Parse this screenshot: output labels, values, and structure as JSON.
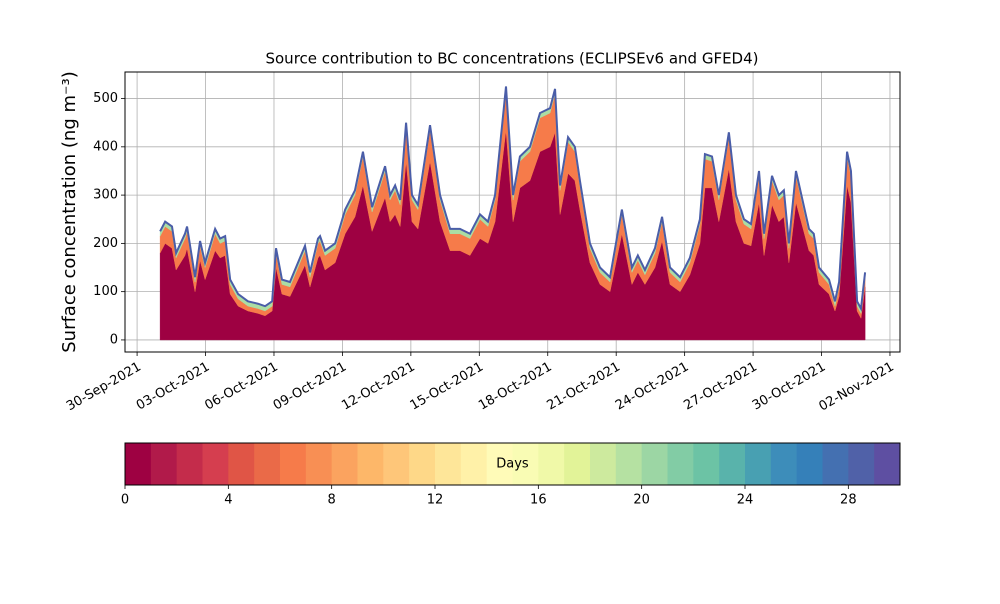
{
  "chart_data": {
    "type": "stacked_area",
    "title": "Source contribution to BC concentrations (ECLIPSEv6 and GFED4)",
    "y_label": "Surface concentration (ng m⁻³)",
    "x": [
      1.01,
      1.23,
      1.53,
      1.71,
      2.1,
      2.19,
      2.54,
      2.76,
      2.98,
      3.42,
      3.64,
      3.86,
      4.08,
      4.43,
      4.86,
      5.3,
      5.61,
      5.92,
      6.09,
      6.35,
      6.7,
      7.36,
      7.58,
      7.93,
      8.02,
      8.24,
      8.68,
      9.12,
      9.55,
      9.9,
      10.3,
      10.87,
      11.09,
      11.31,
      11.53,
      11.79,
      12.05,
      12.31,
      12.84,
      13.28,
      13.72,
      14.15,
      14.59,
      15.03,
      15.38,
      15.69,
      16.17,
      16.48,
      16.78,
      17.22,
      17.66,
      18.1,
      18.32,
      18.54,
      18.89,
      19.19,
      19.41,
      19.85,
      20.29,
      20.73,
      21.25,
      21.69,
      21.95,
      22.26,
      22.7,
      23.01,
      23.36,
      23.8,
      24.23,
      24.67,
      24.89,
      25.2,
      25.5,
      25.94,
      26.25,
      26.6,
      26.91,
      27.26,
      27.48,
      27.83,
      28.13,
      28.35,
      28.57,
      28.88,
      29.45,
      29.66,
      29.89,
      30.33,
      30.59,
      30.77,
      31.12,
      31.29,
      31.56,
      31.73,
      31.91
    ],
    "series": [
      {
        "color": "#9e0142",
        "values": [
          180,
          200,
          190,
          145,
          175,
          190,
          100,
          165,
          125,
          185,
          170,
          175,
          95,
          70,
          60,
          55,
          50,
          60,
          150,
          95,
          90,
          155,
          110,
          170,
          175,
          145,
          160,
          220,
          255,
          320,
          225,
          295,
          245,
          260,
          235,
          370,
          245,
          230,
          370,
          245,
          185,
          185,
          175,
          210,
          200,
          245,
          435,
          245,
          315,
          330,
          390,
          400,
          430,
          260,
          345,
          330,
          270,
          160,
          115,
          100,
          220,
          115,
          140,
          115,
          150,
          205,
          115,
          100,
          135,
          200,
          315,
          315,
          245,
          355,
          245,
          200,
          195,
          285,
          175,
          280,
          245,
          255,
          160,
          285,
          185,
          175,
          115,
          95,
          60,
          90,
          320,
          285,
          60,
          45,
          110
        ]
      },
      {
        "color": "#f67b4a",
        "values": [
          35,
          35,
          35,
          25,
          35,
          35,
          20,
          30,
          25,
          35,
          30,
          30,
          20,
          15,
          10,
          10,
          10,
          10,
          30,
          20,
          20,
          30,
          20,
          30,
          30,
          30,
          30,
          40,
          45,
          60,
          40,
          55,
          45,
          50,
          45,
          70,
          45,
          40,
          65,
          45,
          35,
          35,
          35,
          40,
          35,
          45,
          80,
          45,
          55,
          60,
          70,
          70,
          80,
          50,
          65,
          60,
          50,
          30,
          25,
          20,
          40,
          25,
          25,
          20,
          30,
          40,
          25,
          20,
          25,
          40,
          60,
          55,
          45,
          65,
          45,
          40,
          35,
          55,
          35,
          50,
          45,
          45,
          30,
          55,
          35,
          35,
          25,
          20,
          10,
          20,
          60,
          55,
          10,
          10,
          20
        ]
      },
      {
        "color": "#abdda4",
        "values": [
          10,
          10,
          10,
          10,
          10,
          10,
          10,
          10,
          10,
          10,
          10,
          10,
          10,
          10,
          10,
          10,
          10,
          10,
          10,
          10,
          10,
          10,
          10,
          10,
          10,
          10,
          10,
          10,
          10,
          10,
          10,
          10,
          10,
          10,
          10,
          10,
          10,
          10,
          10,
          10,
          10,
          10,
          10,
          10,
          10,
          10,
          10,
          10,
          10,
          10,
          10,
          10,
          10,
          10,
          10,
          10,
          10,
          10,
          10,
          10,
          10,
          10,
          10,
          10,
          10,
          10,
          10,
          10,
          10,
          10,
          10,
          10,
          10,
          10,
          10,
          10,
          10,
          10,
          10,
          10,
          10,
          10,
          10,
          10,
          10,
          10,
          10,
          10,
          10,
          10,
          10,
          10,
          10,
          10,
          10
        ]
      }
    ],
    "edge_color": "#4a5da8",
    "xlim": [
      -0.53,
      33.44
    ],
    "xticks": [
      {
        "value": 0,
        "label": "30-Sep-2021"
      },
      {
        "value": 3,
        "label": "03-Oct-2021"
      },
      {
        "value": 6,
        "label": "06-Oct-2021"
      },
      {
        "value": 9,
        "label": "09-Oct-2021"
      },
      {
        "value": 12,
        "label": "12-Oct-2021"
      },
      {
        "value": 15,
        "label": "15-Oct-2021"
      },
      {
        "value": 18,
        "label": "18-Oct-2021"
      },
      {
        "value": 21,
        "label": "21-Oct-2021"
      },
      {
        "value": 24,
        "label": "24-Oct-2021"
      },
      {
        "value": 27,
        "label": "27-Oct-2021"
      },
      {
        "value": 30,
        "label": "30-Oct-2021"
      },
      {
        "value": 33,
        "label": "02-Nov-2021"
      }
    ],
    "ylim": [
      -25,
      555
    ],
    "yticks": [
      0,
      100,
      200,
      300,
      400,
      500
    ],
    "grid": true,
    "colorbar": {
      "label": "Days",
      "lim": [
        0,
        30
      ],
      "ticks": [
        0,
        4,
        8,
        12,
        16,
        20,
        24,
        28
      ],
      "colors": [
        "#9e0142",
        "#b11a4a",
        "#c42c4b",
        "#d53e4f",
        "#e05546",
        "#ea6a48",
        "#f67b4a",
        "#f88f54",
        "#fba35f",
        "#fdb769",
        "#fec679",
        "#fed888",
        "#fee699",
        "#fff1a8",
        "#fffbb8",
        "#f9fcb4",
        "#f0f9a8",
        "#e2f398",
        "#cdea9e",
        "#b5e1a2",
        "#9cd6a4",
        "#82cca5",
        "#6cc3a5",
        "#59b3ab",
        "#48a0b2",
        "#3d8dba",
        "#3580b9",
        "#4470b1",
        "#5061a8",
        "#5e4fa2"
      ]
    }
  }
}
